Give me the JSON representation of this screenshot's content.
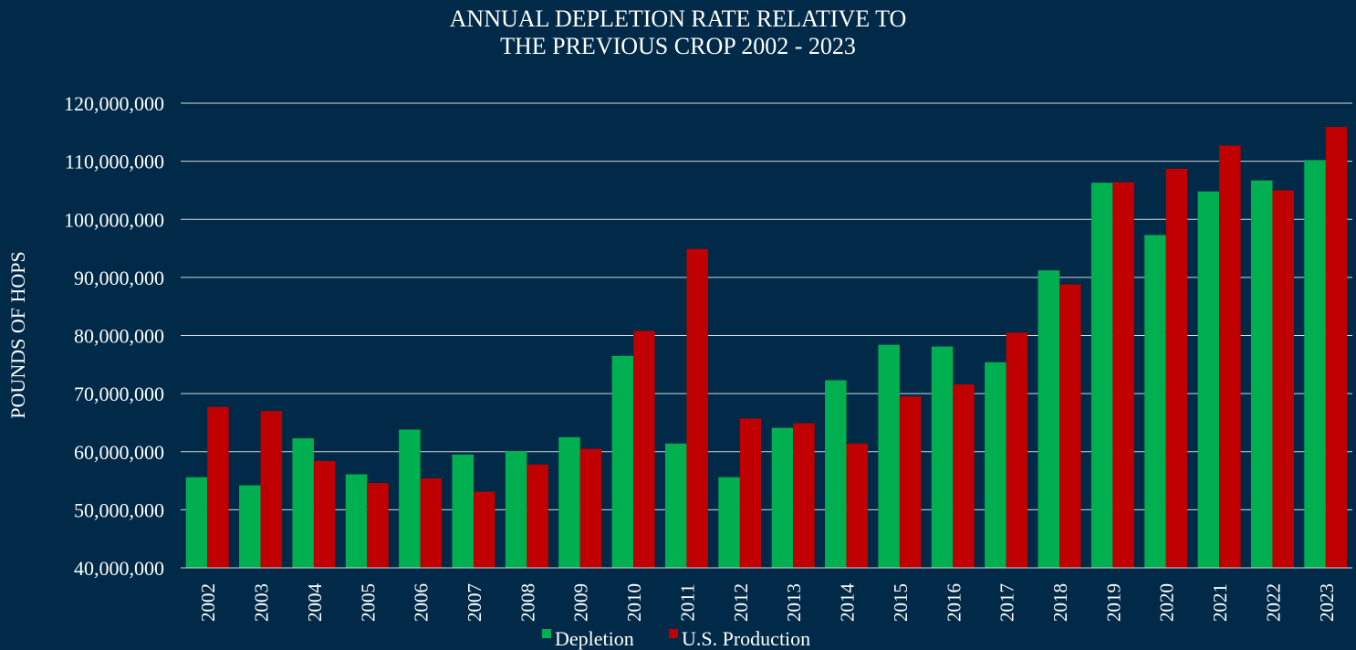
{
  "chart_data": {
    "type": "bar",
    "title_lines": [
      "ANNUAL DEPLETION RATE RELATIVE TO",
      "THE PREVIOUS CROP 2002 - 2023"
    ],
    "xlabel": "",
    "ylabel": "POUNDS OF HOPS",
    "ylim": [
      40000000,
      120000000
    ],
    "y_ticks": [
      {
        "value": 40000000,
        "label": "40,000,000"
      },
      {
        "value": 50000000,
        "label": "50,000,000"
      },
      {
        "value": 60000000,
        "label": "60,000,000"
      },
      {
        "value": 70000000,
        "label": "70,000,000"
      },
      {
        "value": 80000000,
        "label": "80,000,000"
      },
      {
        "value": 90000000,
        "label": "90,000,000"
      },
      {
        "value": 100000000,
        "label": "100,000,000"
      },
      {
        "value": 110000000,
        "label": "110,000,000"
      },
      {
        "value": 120000000,
        "label": "120,000,000"
      }
    ],
    "grid": true,
    "legend_position": "bottom",
    "categories": [
      "2002",
      "2003",
      "2004",
      "2005",
      "2006",
      "2007",
      "2008",
      "2009",
      "2010",
      "2011",
      "2012",
      "2013",
      "2014",
      "2015",
      "2016",
      "2017",
      "2018",
      "2019",
      "2020",
      "2021",
      "2022",
      "2023"
    ],
    "series": [
      {
        "name": "Depletion",
        "color": "#00b050",
        "values": [
          55600000,
          54200000,
          62300000,
          56100000,
          63800000,
          59500000,
          60100000,
          62500000,
          76500000,
          61400000,
          55600000,
          64100000,
          72300000,
          78400000,
          78100000,
          75400000,
          91200000,
          106300000,
          97300000,
          104800000,
          106700000,
          110200000
        ]
      },
      {
        "name": "U.S. Production",
        "color": "#c00000",
        "values": [
          67700000,
          67000000,
          58400000,
          54600000,
          55400000,
          53100000,
          57800000,
          60500000,
          80800000,
          94900000,
          65700000,
          64900000,
          61400000,
          69500000,
          71600000,
          80500000,
          88800000,
          106400000,
          108700000,
          112700000,
          105000000,
          115900000
        ]
      }
    ]
  }
}
